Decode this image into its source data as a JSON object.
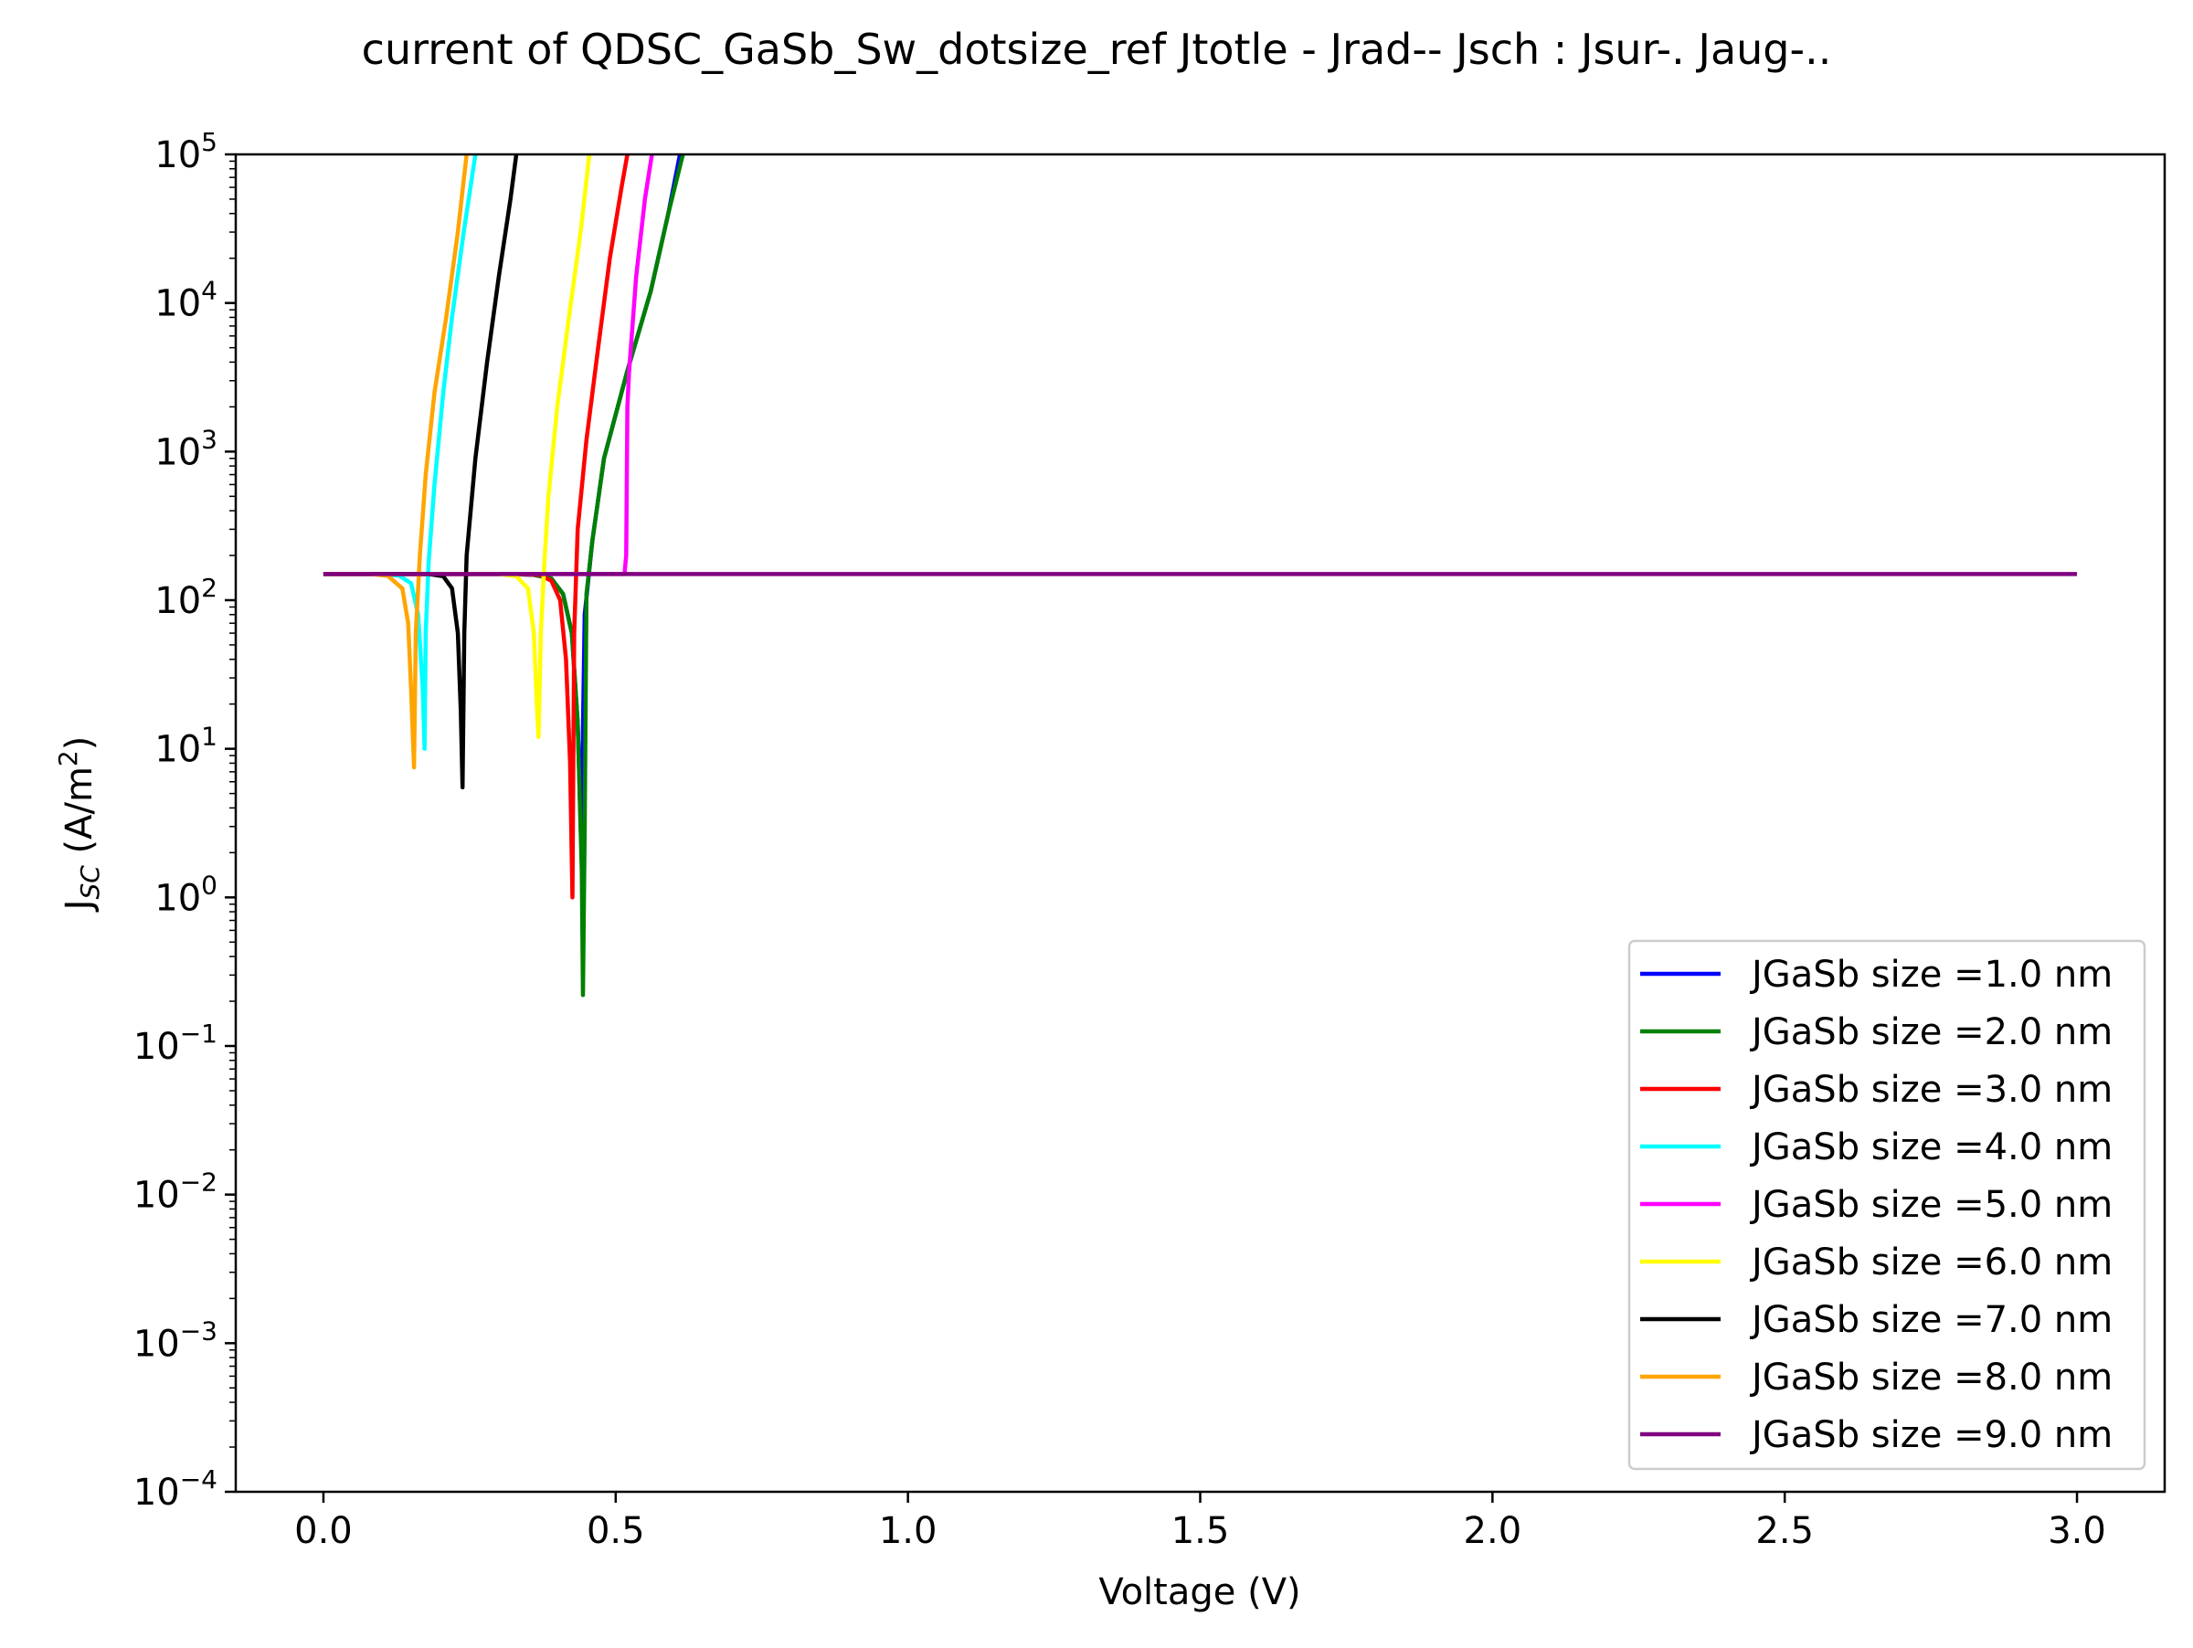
{
  "chart_data": {
    "type": "line",
    "title": "current of QDSC_GaSb_Sw_dotsize_ref Jtotle - Jrad-- Jsch : Jsur-. Jaug-..",
    "xlabel": "Voltage (V)",
    "ylabel": "J",
    "ylabel_sub": "SC",
    "ylabel_unit_pre": " (A/m",
    "ylabel_unit_sup": "2",
    "ylabel_unit_post": ")",
    "xscale": "linear",
    "yscale": "log",
    "xlim": [
      -0.15,
      3.15
    ],
    "ylim": [
      0.0001,
      100000
    ],
    "xticks": [
      {
        "value": 0.0,
        "label": "0.0"
      },
      {
        "value": 0.5,
        "label": "0.5"
      },
      {
        "value": 1.0,
        "label": "1.0"
      },
      {
        "value": 1.5,
        "label": "1.5"
      },
      {
        "value": 2.0,
        "label": "2.0"
      },
      {
        "value": 2.5,
        "label": "2.5"
      },
      {
        "value": 3.0,
        "label": "3.0"
      }
    ],
    "yticks": [
      {
        "exp": -4,
        "base": "10",
        "sup": "−4"
      },
      {
        "exp": -3,
        "base": "10",
        "sup": "−3"
      },
      {
        "exp": -2,
        "base": "10",
        "sup": "−2"
      },
      {
        "exp": -1,
        "base": "10",
        "sup": "−1"
      },
      {
        "exp": 0,
        "base": "10",
        "sup": "0"
      },
      {
        "exp": 1,
        "base": "10",
        "sup": "1"
      },
      {
        "exp": 2,
        "base": "10",
        "sup": "2"
      },
      {
        "exp": 3,
        "base": "10",
        "sup": "3"
      },
      {
        "exp": 4,
        "base": "10",
        "sup": "4"
      },
      {
        "exp": 5,
        "base": "10",
        "sup": "5"
      }
    ],
    "grid": false,
    "legend_position": "lower-right",
    "series": [
      {
        "name": "JGaSb size =1.0 nm",
        "color": "#0000ff",
        "points": [
          [
            0,
            150
          ],
          [
            0.32,
            150
          ],
          [
            0.36,
            148
          ],
          [
            0.39,
            140
          ],
          [
            0.41,
            110
          ],
          [
            0.425,
            60
          ],
          [
            0.435,
            15
          ],
          [
            0.441,
            2.3
          ],
          [
            0.447,
            80
          ],
          [
            0.46,
            250
          ],
          [
            0.48,
            900
          ],
          [
            0.52,
            3500
          ],
          [
            0.56,
            12000
          ],
          [
            0.59,
            40000
          ],
          [
            0.61,
            100000
          ]
        ]
      },
      {
        "name": "JGaSb size =2.0 nm",
        "color": "#008000",
        "points": [
          [
            0,
            150
          ],
          [
            0.32,
            150
          ],
          [
            0.36,
            148
          ],
          [
            0.39,
            140
          ],
          [
            0.41,
            110
          ],
          [
            0.425,
            60
          ],
          [
            0.435,
            15
          ],
          [
            0.442,
            1.5
          ],
          [
            0.444,
            0.22
          ],
          [
            0.447,
            3
          ],
          [
            0.45,
            110
          ],
          [
            0.46,
            250
          ],
          [
            0.48,
            900
          ],
          [
            0.52,
            3500
          ],
          [
            0.56,
            12000
          ],
          [
            0.59,
            40000
          ],
          [
            0.615,
            100000
          ]
        ]
      },
      {
        "name": "JGaSb size =3.0 nm",
        "color": "#ff0000",
        "points": [
          [
            0,
            150
          ],
          [
            0.33,
            150
          ],
          [
            0.37,
            148
          ],
          [
            0.39,
            135
          ],
          [
            0.405,
            100
          ],
          [
            0.415,
            40
          ],
          [
            0.422,
            8
          ],
          [
            0.426,
            1.0
          ],
          [
            0.429,
            60
          ],
          [
            0.435,
            300
          ],
          [
            0.45,
            1200
          ],
          [
            0.47,
            5000
          ],
          [
            0.49,
            20000
          ],
          [
            0.51,
            60000
          ],
          [
            0.52,
            100000
          ]
        ]
      },
      {
        "name": "JGaSb size =4.0 nm",
        "color": "#00ffff",
        "points": [
          [
            0,
            150
          ],
          [
            0.1,
            150
          ],
          [
            0.13,
            146
          ],
          [
            0.15,
            130
          ],
          [
            0.162,
            80
          ],
          [
            0.17,
            25
          ],
          [
            0.173,
            10
          ],
          [
            0.175,
            60
          ],
          [
            0.18,
            180
          ],
          [
            0.19,
            600
          ],
          [
            0.205,
            2500
          ],
          [
            0.22,
            8000
          ],
          [
            0.24,
            30000
          ],
          [
            0.26,
            100000
          ]
        ]
      },
      {
        "name": "JGaSb size =5.0 nm",
        "color": "#ff00ff",
        "points": [
          [
            0,
            150
          ],
          [
            0.515,
            150
          ],
          [
            0.518,
            200
          ],
          [
            0.52,
            2000
          ],
          [
            0.523,
            3500
          ],
          [
            0.535,
            15000
          ],
          [
            0.55,
            50000
          ],
          [
            0.562,
            100000
          ]
        ]
      },
      {
        "name": "JGaSb size =6.0 nm",
        "color": "#ffff00",
        "points": [
          [
            0,
            150
          ],
          [
            0.3,
            150
          ],
          [
            0.33,
            145
          ],
          [
            0.35,
            120
          ],
          [
            0.36,
            60
          ],
          [
            0.365,
            20
          ],
          [
            0.368,
            12
          ],
          [
            0.372,
            60
          ],
          [
            0.378,
            180
          ],
          [
            0.385,
            500
          ],
          [
            0.4,
            2000
          ],
          [
            0.42,
            8000
          ],
          [
            0.44,
            30000
          ],
          [
            0.455,
            100000
          ]
        ]
      },
      {
        "name": "JGaSb size =7.0 nm",
        "color": "#000000",
        "points": [
          [
            0,
            150
          ],
          [
            0.18,
            150
          ],
          [
            0.205,
            145
          ],
          [
            0.22,
            120
          ],
          [
            0.23,
            60
          ],
          [
            0.235,
            18
          ],
          [
            0.238,
            5.5
          ],
          [
            0.241,
            60
          ],
          [
            0.245,
            200
          ],
          [
            0.26,
            900
          ],
          [
            0.28,
            4000
          ],
          [
            0.3,
            15000
          ],
          [
            0.32,
            50000
          ],
          [
            0.33,
            100000
          ]
        ]
      },
      {
        "name": "JGaSb size =8.0 nm",
        "color": "#ffa500",
        "points": [
          [
            0,
            150
          ],
          [
            0.08,
            150
          ],
          [
            0.11,
            146
          ],
          [
            0.135,
            120
          ],
          [
            0.145,
            70
          ],
          [
            0.15,
            25
          ],
          [
            0.155,
            7.5
          ],
          [
            0.158,
            60
          ],
          [
            0.165,
            200
          ],
          [
            0.175,
            700
          ],
          [
            0.19,
            2500
          ],
          [
            0.21,
            8000
          ],
          [
            0.23,
            30000
          ],
          [
            0.245,
            100000
          ]
        ]
      },
      {
        "name": "JGaSb size =9.0 nm",
        "color": "#800080",
        "points": [
          [
            0,
            150
          ],
          [
            3.0,
            150
          ]
        ]
      }
    ]
  }
}
